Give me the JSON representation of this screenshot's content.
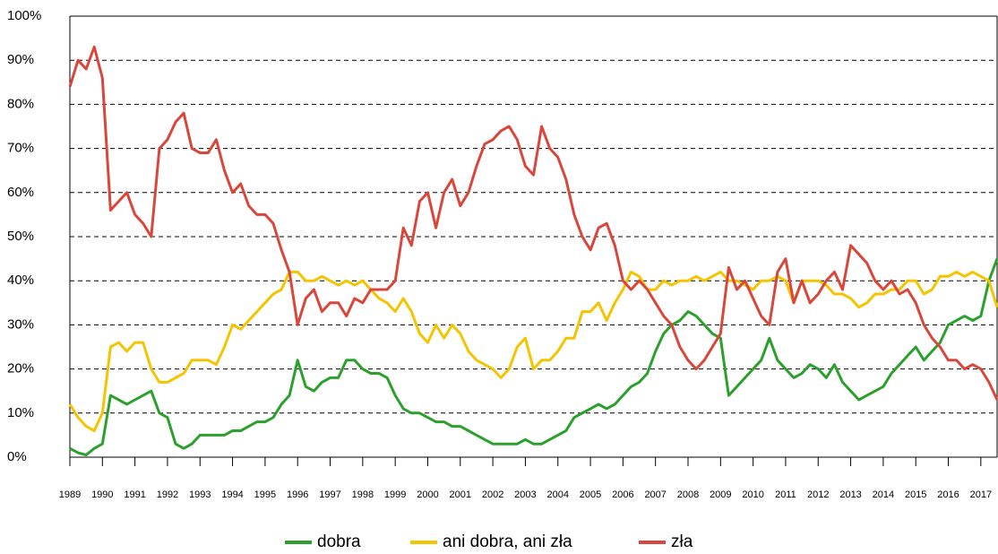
{
  "chart_data": {
    "type": "line",
    "x": [
      1989,
      1989.25,
      1989.5,
      1989.75,
      1990,
      1990.25,
      1990.5,
      1990.75,
      1991,
      1991.25,
      1991.5,
      1991.75,
      1992,
      1992.25,
      1992.5,
      1992.75,
      1993,
      1993.25,
      1993.5,
      1993.75,
      1994,
      1994.25,
      1994.5,
      1994.75,
      1995,
      1995.25,
      1995.5,
      1995.75,
      1996,
      1996.25,
      1996.5,
      1996.75,
      1997,
      1997.25,
      1997.5,
      1997.75,
      1998,
      1998.25,
      1998.5,
      1998.75,
      1999,
      1999.25,
      1999.5,
      1999.75,
      2000,
      2000.25,
      2000.5,
      2000.75,
      2001,
      2001.25,
      2001.5,
      2001.75,
      2002,
      2002.25,
      2002.5,
      2002.75,
      2003,
      2003.25,
      2003.5,
      2003.75,
      2004,
      2004.25,
      2004.5,
      2004.75,
      2005,
      2005.25,
      2005.5,
      2005.75,
      2006,
      2006.25,
      2006.5,
      2006.75,
      2007,
      2007.25,
      2007.5,
      2007.75,
      2008,
      2008.25,
      2008.5,
      2008.75,
      2009,
      2009.25,
      2009.5,
      2009.75,
      2010,
      2010.25,
      2010.5,
      2010.75,
      2011,
      2011.25,
      2011.5,
      2011.75,
      2012,
      2012.25,
      2012.5,
      2012.75,
      2013,
      2013.25,
      2013.5,
      2013.75,
      2014,
      2014.25,
      2014.5,
      2014.75,
      2015,
      2015.25,
      2015.5,
      2015.75,
      2016,
      2016.25,
      2016.5,
      2016.75,
      2017,
      2017.25,
      2017.5
    ],
    "series": [
      {
        "name": "dobra",
        "color": "#2ca02c",
        "values": [
          2,
          1,
          0.5,
          2,
          3,
          14,
          13,
          12,
          13,
          14,
          15,
          10,
          9,
          3,
          2,
          3,
          5,
          5,
          5,
          5,
          6,
          6,
          7,
          8,
          8,
          9,
          12,
          14,
          22,
          16,
          15,
          17,
          18,
          18,
          22,
          22,
          20,
          19,
          19,
          18,
          14,
          11,
          10,
          10,
          9,
          8,
          8,
          7,
          7,
          6,
          5,
          4,
          3,
          3,
          3,
          3,
          4,
          3,
          3,
          4,
          5,
          6,
          9,
          10,
          11,
          12,
          11,
          12,
          14,
          16,
          17,
          19,
          24,
          28,
          30,
          31,
          33,
          32,
          30,
          28,
          27,
          14,
          16,
          18,
          20,
          22,
          27,
          22,
          20,
          18,
          19,
          21,
          20,
          18,
          21,
          17,
          15,
          13,
          14,
          15,
          16,
          19,
          21,
          23,
          25,
          22,
          24,
          26,
          30,
          31,
          32,
          31,
          32,
          40,
          45
        ]
      },
      {
        "name": "ani dobra, ani zła",
        "color": "#f5c400",
        "values": [
          12,
          9,
          7,
          6,
          10,
          25,
          26,
          24,
          26,
          26,
          20,
          17,
          17,
          18,
          19,
          22,
          22,
          22,
          21,
          25,
          30,
          29,
          31,
          33,
          35,
          37,
          38,
          42,
          42,
          40,
          40,
          41,
          40,
          39,
          40,
          39,
          40,
          38,
          36,
          35,
          33,
          36,
          33,
          28,
          26,
          30,
          27,
          30,
          28,
          24,
          22,
          21,
          20,
          18,
          20,
          25,
          27,
          20,
          22,
          22,
          24,
          27,
          27,
          33,
          33,
          35,
          31,
          35,
          38,
          42,
          41,
          38,
          38,
          40,
          39,
          40,
          40,
          41,
          40,
          41,
          42,
          40,
          40,
          39,
          38,
          40,
          40,
          41,
          40,
          35,
          40,
          40,
          40,
          39,
          37,
          37,
          36,
          34,
          35,
          37,
          37,
          38,
          38,
          40,
          40,
          37,
          38,
          41,
          41,
          42,
          41,
          42,
          41,
          40,
          34
        ]
      },
      {
        "name": "zła",
        "color": "#d9473c",
        "values": [
          84,
          90,
          88,
          93,
          86,
          56,
          58,
          60,
          55,
          53,
          50,
          70,
          72,
          76,
          78,
          70,
          69,
          69,
          72,
          65,
          60,
          62,
          57,
          55,
          55,
          53,
          47,
          42,
          30,
          36,
          38,
          33,
          35,
          35,
          32,
          36,
          35,
          38,
          38,
          38,
          40,
          52,
          48,
          58,
          60,
          52,
          60,
          63,
          57,
          60,
          66,
          71,
          72,
          74,
          75,
          72,
          66,
          64,
          75,
          70,
          68,
          63,
          55,
          50,
          47,
          52,
          53,
          48,
          40,
          38,
          40,
          38,
          35,
          32,
          30,
          25,
          22,
          20,
          22,
          25,
          28,
          43,
          38,
          40,
          36,
          32,
          30,
          42,
          45,
          35,
          40,
          35,
          37,
          40,
          42,
          38,
          48,
          46,
          44,
          40,
          38,
          40,
          37,
          38,
          35,
          30,
          27,
          25,
          22,
          22,
          20,
          21,
          20,
          17,
          13
        ]
      }
    ],
    "xlim": [
      1989,
      2017.5
    ],
    "xticks": [
      1989,
      1990,
      1991,
      1992,
      1993,
      1994,
      1995,
      1996,
      1997,
      1998,
      1999,
      2000,
      2001,
      2002,
      2003,
      2004,
      2005,
      2006,
      2007,
      2008,
      2009,
      2010,
      2011,
      2012,
      2013,
      2014,
      2015,
      2016,
      2017
    ],
    "ylim": [
      0,
      100
    ],
    "yticks": [
      {
        "value": 0,
        "label": "0%"
      },
      {
        "value": 10,
        "label": "10%"
      },
      {
        "value": 20,
        "label": "20%"
      },
      {
        "value": 30,
        "label": "30%"
      },
      {
        "value": 40,
        "label": "40%"
      },
      {
        "value": 50,
        "label": "50%"
      },
      {
        "value": 60,
        "label": "60%"
      },
      {
        "value": 70,
        "label": "70%"
      },
      {
        "value": 80,
        "label": "80%"
      },
      {
        "value": 90,
        "label": "90%"
      },
      {
        "value": 100,
        "label": "100%"
      }
    ],
    "grid": true
  }
}
